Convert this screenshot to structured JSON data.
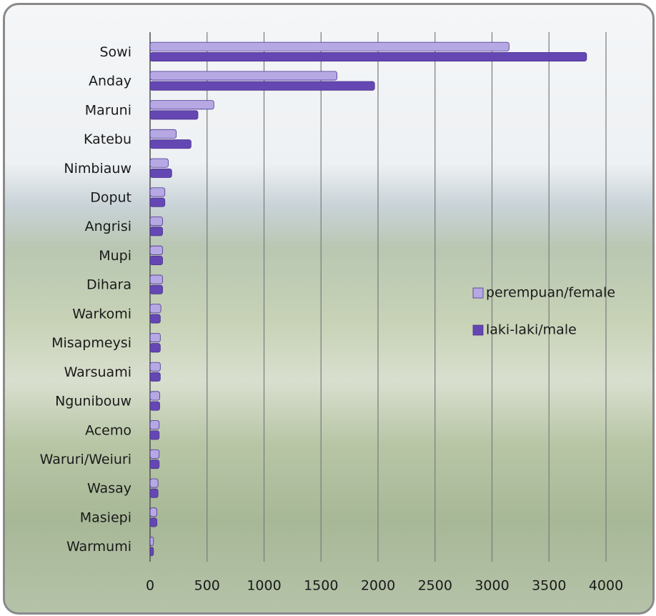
{
  "chart_data": {
    "type": "bar",
    "orientation": "horizontal",
    "categories": [
      "Sowi",
      "Anday",
      "Maruni",
      "Katebu",
      "Nimbiauw",
      "Doput",
      "Angrisi",
      "Mupi",
      "Dihara",
      "Warkomi",
      "Misapmeysi",
      "Warsuami",
      "Ngunibouw",
      "Acemo",
      "Waruri/Weiuri",
      "Wasay",
      "Masiepi",
      "Warmumi"
    ],
    "series": [
      {
        "name": "perempuan/female",
        "color": "#b6a8e3",
        "values": [
          3150,
          1640,
          560,
          230,
          160,
          130,
          110,
          110,
          110,
          95,
          90,
          90,
          85,
          80,
          80,
          70,
          60,
          30
        ]
      },
      {
        "name": "laki-laki/male",
        "color": "#6547b3",
        "values": [
          3830,
          1970,
          420,
          360,
          190,
          130,
          110,
          110,
          110,
          90,
          90,
          90,
          85,
          80,
          80,
          70,
          60,
          30
        ]
      }
    ],
    "xlim": [
      0,
      4000
    ],
    "xticks": [
      0,
      500,
      1000,
      1500,
      2000,
      2500,
      3000,
      3500,
      4000
    ],
    "grid": true,
    "legend": "right"
  }
}
